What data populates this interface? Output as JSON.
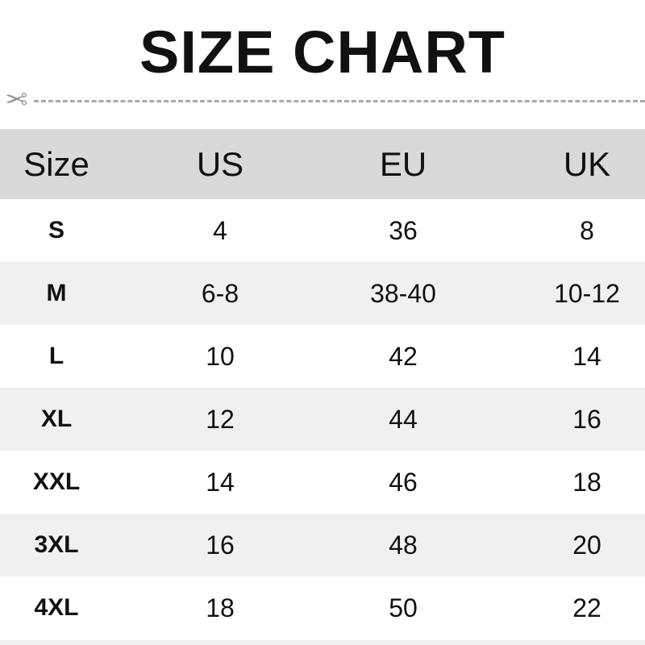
{
  "title": "SIZE CHART",
  "icons": {
    "cut_line": "scissors-icon"
  },
  "table": {
    "headers": [
      "Size",
      "US",
      "EU",
      "UK"
    ],
    "rows": [
      [
        "S",
        "4",
        "36",
        "8"
      ],
      [
        "M",
        "6-8",
        "38-40",
        "10-12"
      ],
      [
        "L",
        "10",
        "42",
        "14"
      ],
      [
        "XL",
        "12",
        "44",
        "16"
      ],
      [
        "XXL",
        "14",
        "46",
        "18"
      ],
      [
        "3XL",
        "16",
        "48",
        "20"
      ],
      [
        "4XL",
        "18",
        "50",
        "22"
      ]
    ]
  },
  "colors": {
    "header_bg": "#d9d9d9",
    "alt_row_bg": "#f0f0f0",
    "row_bg": "#ffffff"
  }
}
